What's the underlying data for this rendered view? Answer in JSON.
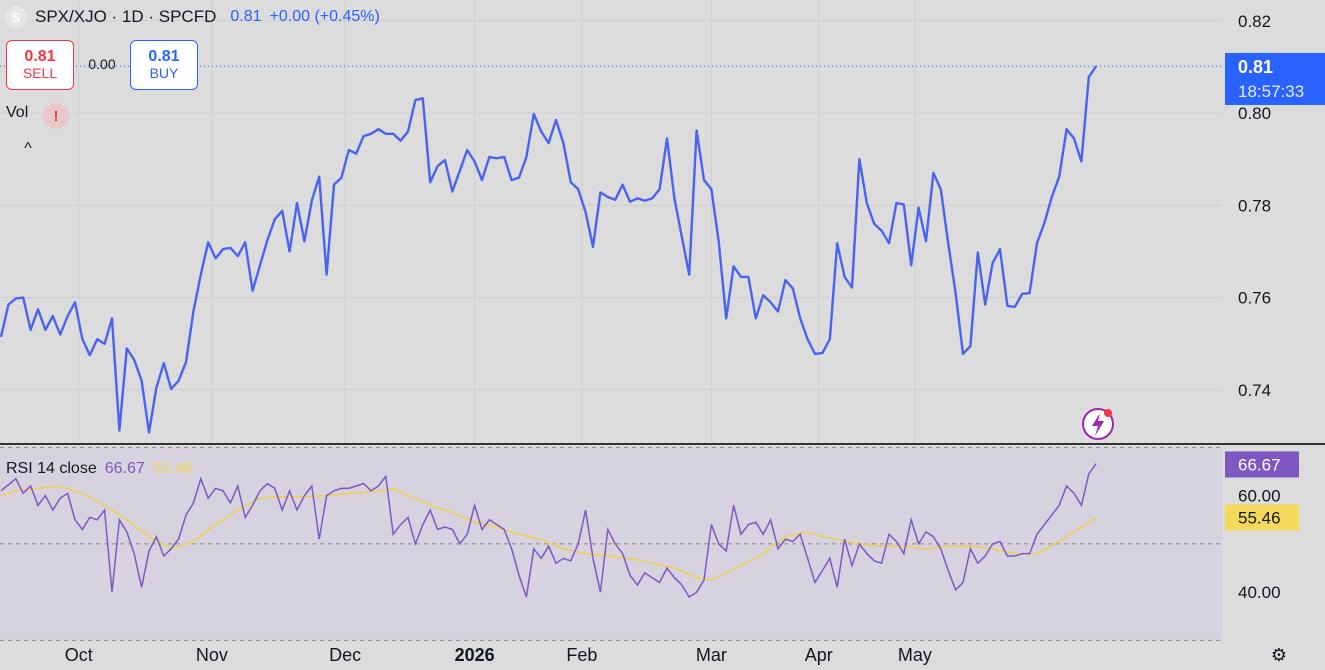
{
  "header": {
    "logo_letter": "S",
    "title": "SPX/XJO · 1D · SPCFD",
    "last": "0.81",
    "change": "+0.00 (+0.45%)"
  },
  "trade": {
    "sell_price": "0.81",
    "sell_label": "SELL",
    "spread": "0.00",
    "buy_price": "0.81",
    "buy_label": "BUY"
  },
  "volume_label": "Vol",
  "volume_warning": "!",
  "collapse_glyph": "^",
  "price_badge": {
    "price": "0.81",
    "countdown": "18:57:33"
  },
  "rsi": {
    "name": "RSI 14 close",
    "value": "66.67",
    "ma_value": "55.46"
  },
  "colors": {
    "price_line": "#4a63f0",
    "rsi_line": "#7e57c2",
    "rsi_ma": "#f0d04a",
    "badge_blue": "#2962ff",
    "badge_purple": "#7e57c2",
    "badge_yellow": "#f5d95a",
    "background": "#dcdcdc"
  },
  "icons": {
    "gear": "gear-icon",
    "lightning": "lightning-icon",
    "warning": "warning-icon"
  },
  "chart_data": {
    "type": "line",
    "price_axis": {
      "ticks": [
        "0.82",
        "0.80",
        "0.78",
        "0.76",
        "0.74"
      ],
      "values": [
        0.82,
        0.8,
        0.78,
        0.76,
        0.74
      ],
      "range": [
        0.7285,
        0.8245
      ]
    },
    "rsi_axis": {
      "ticks": [
        "60.00",
        "40.00"
      ],
      "values": [
        60,
        40
      ],
      "range": [
        30.5,
        70.5
      ],
      "band": [
        30,
        70
      ]
    },
    "x_labels": [
      "Oct",
      "Nov",
      "Dec",
      "2026",
      "Feb",
      "Mar",
      "Apr",
      "May"
    ],
    "x_label_days": [
      21,
      57,
      93,
      128,
      157,
      192,
      221,
      247
    ],
    "price": {
      "name": "SPX/XJO",
      "points": [
        [
          0,
          0.7515
        ],
        [
          2,
          0.7585
        ],
        [
          4,
          0.7598
        ],
        [
          6,
          0.76
        ],
        [
          8,
          0.753
        ],
        [
          10,
          0.7575
        ],
        [
          12,
          0.753
        ],
        [
          14,
          0.756
        ],
        [
          16,
          0.752
        ],
        [
          18,
          0.756
        ],
        [
          20,
          0.759
        ],
        [
          22,
          0.751
        ],
        [
          24,
          0.7475
        ],
        [
          26,
          0.751
        ],
        [
          28,
          0.75
        ],
        [
          30,
          0.7555
        ],
        [
          32,
          0.7312
        ],
        [
          34,
          0.749
        ],
        [
          36,
          0.7465
        ],
        [
          38,
          0.742
        ],
        [
          40,
          0.7308
        ],
        [
          42,
          0.7405
        ],
        [
          44,
          0.7458
        ],
        [
          46,
          0.7402
        ],
        [
          48,
          0.742
        ],
        [
          50,
          0.746
        ],
        [
          52,
          0.757
        ],
        [
          54,
          0.765
        ],
        [
          56,
          0.772
        ],
        [
          58,
          0.7685
        ],
        [
          60,
          0.7705
        ],
        [
          62,
          0.7708
        ],
        [
          64,
          0.769
        ],
        [
          66,
          0.772
        ],
        [
          68,
          0.7615
        ],
        [
          70,
          0.767
        ],
        [
          72,
          0.7725
        ],
        [
          74,
          0.777
        ],
        [
          76,
          0.7788
        ],
        [
          78,
          0.77
        ],
        [
          80,
          0.7805
        ],
        [
          82,
          0.7722
        ],
        [
          84,
          0.781
        ],
        [
          86,
          0.7862
        ],
        [
          88,
          0.765
        ],
        [
          90,
          0.7845
        ],
        [
          92,
          0.786
        ],
        [
          94,
          0.792
        ],
        [
          96,
          0.7912
        ],
        [
          98,
          0.795
        ],
        [
          100,
          0.7955
        ],
        [
          102,
          0.7965
        ],
        [
          104,
          0.7955
        ],
        [
          106,
          0.7955
        ],
        [
          108,
          0.794
        ],
        [
          110,
          0.796
        ],
        [
          112,
          0.8028
        ],
        [
          114,
          0.8032
        ],
        [
          116,
          0.785
        ],
        [
          118,
          0.7885
        ],
        [
          120,
          0.7898
        ],
        [
          122,
          0.783
        ],
        [
          124,
          0.7875
        ],
        [
          126,
          0.792
        ],
        [
          128,
          0.7895
        ],
        [
          130,
          0.7855
        ],
        [
          132,
          0.7905
        ],
        [
          134,
          0.7902
        ],
        [
          136,
          0.7905
        ],
        [
          138,
          0.7855
        ],
        [
          140,
          0.786
        ],
        [
          142,
          0.7905
        ],
        [
          144,
          0.7998
        ],
        [
          146,
          0.796
        ],
        [
          148,
          0.7935
        ],
        [
          150,
          0.7985
        ],
        [
          152,
          0.7935
        ],
        [
          154,
          0.785
        ],
        [
          156,
          0.7835
        ],
        [
          158,
          0.7785
        ],
        [
          160,
          0.771
        ],
        [
          162,
          0.7828
        ],
        [
          164,
          0.7818
        ],
        [
          166,
          0.7812
        ],
        [
          168,
          0.7845
        ],
        [
          170,
          0.7808
        ],
        [
          172,
          0.7815
        ],
        [
          174,
          0.781
        ],
        [
          176,
          0.7815
        ],
        [
          178,
          0.7835
        ],
        [
          180,
          0.7945
        ],
        [
          182,
          0.7815
        ],
        [
          184,
          0.7732
        ],
        [
          186,
          0.765
        ],
        [
          188,
          0.7962
        ],
        [
          190,
          0.7855
        ],
        [
          192,
          0.7835
        ],
        [
          194,
          0.772
        ],
        [
          196,
          0.7555
        ],
        [
          198,
          0.7668
        ],
        [
          200,
          0.7645
        ],
        [
          202,
          0.7645
        ],
        [
          204,
          0.7555
        ],
        [
          206,
          0.7605
        ],
        [
          208,
          0.759
        ],
        [
          210,
          0.757
        ],
        [
          212,
          0.7638
        ],
        [
          214,
          0.762
        ],
        [
          216,
          0.7555
        ],
        [
          218,
          0.751
        ],
        [
          220,
          0.7478
        ],
        [
          222,
          0.748
        ],
        [
          224,
          0.751
        ],
        [
          226,
          0.7718
        ],
        [
          228,
          0.7645
        ],
        [
          230,
          0.7622
        ],
        [
          232,
          0.79
        ],
        [
          234,
          0.7805
        ],
        [
          236,
          0.776
        ],
        [
          238,
          0.7745
        ],
        [
          240,
          0.7718
        ],
        [
          242,
          0.7805
        ],
        [
          244,
          0.7802
        ],
        [
          246,
          0.767
        ],
        [
          248,
          0.7795
        ],
        [
          250,
          0.7722
        ],
        [
          252,
          0.787
        ],
        [
          254,
          0.7835
        ],
        [
          256,
          0.7718
        ],
        [
          258,
          0.761
        ],
        [
          260,
          0.7478
        ],
        [
          262,
          0.7495
        ],
        [
          264,
          0.7698
        ],
        [
          266,
          0.7585
        ],
        [
          268,
          0.7675
        ],
        [
          270,
          0.7705
        ],
        [
          272,
          0.7582
        ],
        [
          274,
          0.758
        ],
        [
          276,
          0.7608
        ],
        [
          278,
          0.761
        ],
        [
          280,
          0.7718
        ],
        [
          282,
          0.7762
        ],
        [
          284,
          0.7818
        ],
        [
          286,
          0.7862
        ],
        [
          288,
          0.7965
        ],
        [
          290,
          0.7945
        ],
        [
          292,
          0.7895
        ],
        [
          294,
          0.8078
        ],
        [
          296,
          0.8102
        ]
      ]
    },
    "rsi_series": {
      "name": "RSI 14 close",
      "points": [
        [
          0,
          61.0
        ],
        [
          4,
          63.5
        ],
        [
          6,
          60.5
        ],
        [
          8,
          62.0
        ],
        [
          10,
          58.0
        ],
        [
          12,
          60.0
        ],
        [
          14,
          57.0
        ],
        [
          16,
          59.5
        ],
        [
          18,
          60.5
        ],
        [
          20,
          55.0
        ],
        [
          22,
          53.0
        ],
        [
          24,
          55.5
        ],
        [
          26,
          55.0
        ],
        [
          28,
          57.0
        ],
        [
          30,
          40.0
        ],
        [
          32,
          55.0
        ],
        [
          34,
          52.5
        ],
        [
          36,
          48.0
        ],
        [
          38,
          41.0
        ],
        [
          40,
          48.5
        ],
        [
          42,
          51.5
        ],
        [
          44,
          47.5
        ],
        [
          46,
          49.0
        ],
        [
          48,
          51.0
        ],
        [
          50,
          56.0
        ],
        [
          52,
          58.5
        ],
        [
          54,
          63.5
        ],
        [
          56,
          59.5
        ],
        [
          58,
          61.5
        ],
        [
          60,
          61.0
        ],
        [
          62,
          58.5
        ],
        [
          64,
          62.0
        ],
        [
          66,
          55.5
        ],
        [
          68,
          58.0
        ],
        [
          70,
          61.0
        ],
        [
          72,
          62.5
        ],
        [
          74,
          61.5
        ],
        [
          76,
          57.0
        ],
        [
          78,
          61.0
        ],
        [
          80,
          57.0
        ],
        [
          82,
          60.0
        ],
        [
          84,
          62.0
        ],
        [
          86,
          51.0
        ],
        [
          88,
          60.0
        ],
        [
          90,
          61.0
        ],
        [
          92,
          61.5
        ],
        [
          94,
          61.5
        ],
        [
          96,
          62.0
        ],
        [
          98,
          62.5
        ],
        [
          100,
          61.0
        ],
        [
          102,
          62.0
        ],
        [
          104,
          64.0
        ],
        [
          106,
          52.0
        ],
        [
          108,
          54.0
        ],
        [
          110,
          55.5
        ],
        [
          112,
          50.0
        ],
        [
          114,
          54.0
        ],
        [
          116,
          57.0
        ],
        [
          118,
          53.0
        ],
        [
          120,
          53.5
        ],
        [
          122,
          53.0
        ],
        [
          124,
          50.0
        ],
        [
          126,
          52.0
        ],
        [
          128,
          58.0
        ],
        [
          130,
          53.0
        ],
        [
          132,
          55.0
        ],
        [
          134,
          54.0
        ],
        [
          136,
          53.0
        ],
        [
          138,
          49.0
        ],
        [
          140,
          43.5
        ],
        [
          142,
          39.0
        ],
        [
          144,
          49.0
        ],
        [
          146,
          47.0
        ],
        [
          148,
          49.5
        ],
        [
          150,
          46.0
        ],
        [
          152,
          47.0
        ],
        [
          154,
          46.5
        ],
        [
          156,
          50.0
        ],
        [
          158,
          57.0
        ],
        [
          160,
          47.0
        ],
        [
          162,
          40.0
        ],
        [
          164,
          53.0
        ],
        [
          166,
          50.0
        ],
        [
          168,
          48.0
        ],
        [
          170,
          43.5
        ],
        [
          172,
          41.5
        ],
        [
          174,
          44.0
        ],
        [
          176,
          43.0
        ],
        [
          178,
          42.0
        ],
        [
          180,
          45.0
        ],
        [
          182,
          43.0
        ],
        [
          184,
          41.5
        ],
        [
          186,
          39.0
        ],
        [
          188,
          40.0
        ],
        [
          190,
          42.5
        ],
        [
          192,
          54.0
        ],
        [
          194,
          50.0
        ],
        [
          196,
          48.5
        ],
        [
          198,
          58.0
        ],
        [
          200,
          52.0
        ],
        [
          202,
          54.0
        ],
        [
          204,
          54.5
        ],
        [
          206,
          52.0
        ],
        [
          208,
          55.0
        ],
        [
          210,
          49.0
        ],
        [
          212,
          51.0
        ],
        [
          214,
          50.5
        ],
        [
          216,
          52.0
        ],
        [
          218,
          47.0
        ],
        [
          220,
          42.0
        ],
        [
          222,
          44.5
        ],
        [
          224,
          47.0
        ],
        [
          226,
          41.0
        ],
        [
          228,
          51.0
        ],
        [
          230,
          45.5
        ],
        [
          232,
          50.0
        ],
        [
          234,
          48.0
        ],
        [
          236,
          46.5
        ],
        [
          238,
          46.0
        ],
        [
          240,
          52.0
        ],
        [
          242,
          50.5
        ],
        [
          244,
          48.0
        ],
        [
          246,
          55.0
        ],
        [
          248,
          50.0
        ],
        [
          250,
          52.5
        ],
        [
          252,
          51.5
        ],
        [
          254,
          49.0
        ],
        [
          256,
          44.5
        ],
        [
          258,
          40.5
        ],
        [
          260,
          42.0
        ],
        [
          262,
          49.0
        ],
        [
          264,
          46.0
        ],
        [
          266,
          47.5
        ],
        [
          268,
          50.0
        ],
        [
          270,
          50.5
        ],
        [
          272,
          47.5
        ],
        [
          274,
          47.5
        ],
        [
          276,
          48.0
        ],
        [
          278,
          48.0
        ],
        [
          280,
          52.0
        ],
        [
          282,
          54.0
        ],
        [
          284,
          56.0
        ],
        [
          286,
          58.0
        ],
        [
          288,
          62.0
        ],
        [
          290,
          60.5
        ],
        [
          292,
          58.0
        ],
        [
          294,
          64.5
        ],
        [
          296,
          66.67
        ]
      ]
    },
    "rsi_ma_series": {
      "name": "RSI MA",
      "points": [
        [
          0,
          60.0
        ],
        [
          4,
          61.0
        ],
        [
          10,
          61.5
        ],
        [
          16,
          62.0
        ],
        [
          22,
          60.5
        ],
        [
          28,
          58.0
        ],
        [
          34,
          55.0
        ],
        [
          40,
          51.5
        ],
        [
          46,
          49.0
        ],
        [
          52,
          50.5
        ],
        [
          58,
          54.0
        ],
        [
          64,
          57.0
        ],
        [
          70,
          59.5
        ],
        [
          76,
          59.8
        ],
        [
          82,
          59.8
        ],
        [
          88,
          60.0
        ],
        [
          94,
          60.5
        ],
        [
          100,
          60.8
        ],
        [
          106,
          61.5
        ],
        [
          110,
          60.0
        ],
        [
          116,
          58.0
        ],
        [
          122,
          56.5
        ],
        [
          128,
          54.5
        ],
        [
          134,
          53.5
        ],
        [
          140,
          52.0
        ],
        [
          146,
          51.0
        ],
        [
          152,
          49.0
        ],
        [
          158,
          48.0
        ],
        [
          164,
          47.5
        ],
        [
          170,
          47.0
        ],
        [
          176,
          46.0
        ],
        [
          182,
          45.0
        ],
        [
          188,
          43.0
        ],
        [
          192,
          42.5
        ],
        [
          196,
          44.0
        ],
        [
          200,
          45.5
        ],
        [
          206,
          48.0
        ],
        [
          212,
          51.5
        ],
        [
          218,
          52.5
        ],
        [
          222,
          51.5
        ],
        [
          226,
          51.0
        ],
        [
          232,
          50.0
        ],
        [
          238,
          49.5
        ],
        [
          244,
          49.5
        ],
        [
          250,
          49.0
        ],
        [
          256,
          49.5
        ],
        [
          262,
          49.5
        ],
        [
          268,
          49.0
        ],
        [
          274,
          48.0
        ],
        [
          280,
          48.0
        ],
        [
          286,
          50.5
        ],
        [
          292,
          53.5
        ],
        [
          296,
          55.46
        ]
      ]
    }
  }
}
